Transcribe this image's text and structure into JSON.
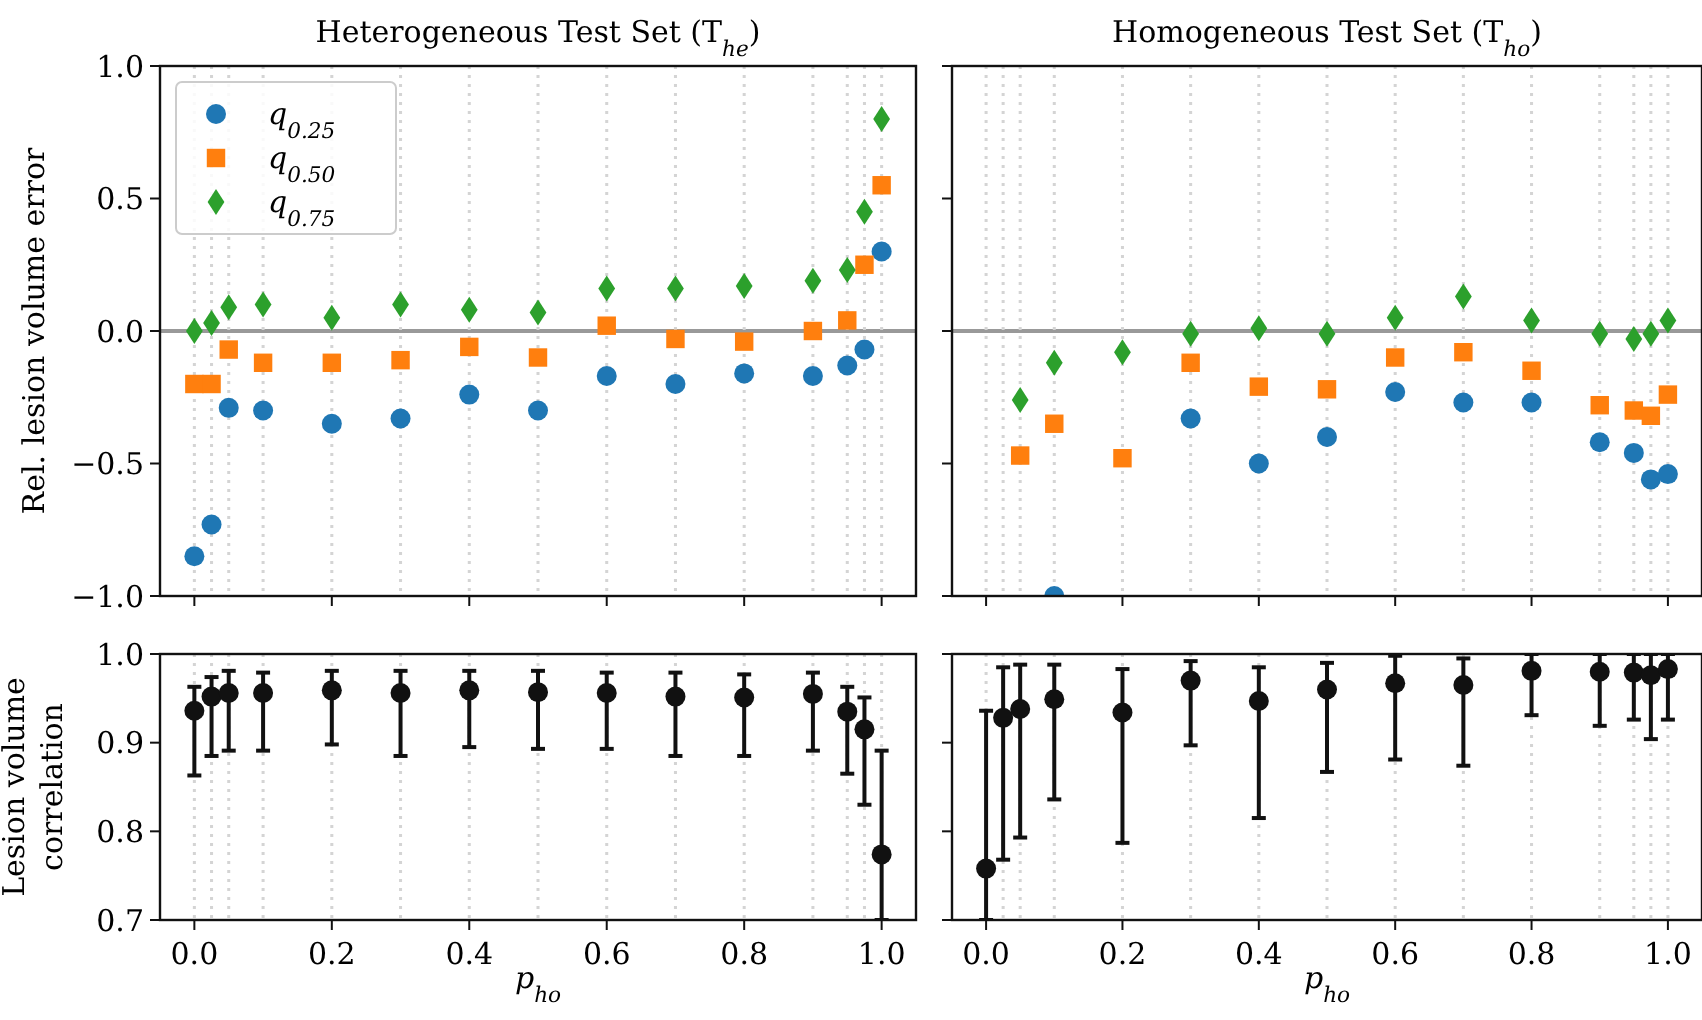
{
  "chart_data": [
    {
      "type": "scatter",
      "title": "Heterogeneous Test Set (T$_{he}$)",
      "ylabel": "Rel. lesion volume error",
      "x": [
        0,
        0.025,
        0.05,
        0.1,
        0.2,
        0.3,
        0.4,
        0.5,
        0.6,
        0.7,
        0.8,
        0.9,
        0.95,
        0.975,
        1.0
      ],
      "series": [
        {
          "name": "q$_{0.25}$",
          "color": "#1f77b4",
          "marker": "circle",
          "values": [
            -0.85,
            -0.73,
            -0.29,
            -0.3,
            -0.35,
            -0.33,
            -0.24,
            -0.3,
            -0.17,
            -0.2,
            -0.16,
            -0.17,
            -0.13,
            -0.07,
            0.3
          ]
        },
        {
          "name": "q$_{0.50}$",
          "color": "#ff7f0e",
          "marker": "square",
          "values": [
            -0.2,
            -0.2,
            -0.07,
            -0.12,
            -0.12,
            -0.11,
            -0.06,
            -0.1,
            0.02,
            -0.03,
            -0.04,
            0.0,
            0.04,
            0.25,
            0.55
          ]
        },
        {
          "name": "q$_{0.75}$",
          "color": "#2ca02c",
          "marker": "diamond",
          "values": [
            0.0,
            0.03,
            0.09,
            0.1,
            0.05,
            0.1,
            0.08,
            0.07,
            0.16,
            0.16,
            0.17,
            0.19,
            0.23,
            0.45,
            0.8
          ]
        }
      ],
      "xlim": [
        -0.05,
        1.05
      ],
      "xticks": [
        {
          "value": 0,
          "label": null
        },
        {
          "value": 0.2,
          "label": null
        },
        {
          "value": 0.4,
          "label": null
        },
        {
          "value": 0.6,
          "label": null
        },
        {
          "value": 0.8,
          "label": null
        },
        {
          "value": 1,
          "label": null
        }
      ],
      "ylim": [
        -1,
        1
      ],
      "yticks": [
        {
          "value": -1,
          "label": "−1.0"
        },
        {
          "value": -0.5,
          "label": "−0.5"
        },
        {
          "value": 0,
          "label": "0.0"
        },
        {
          "value": 0.5,
          "label": "0.5"
        },
        {
          "value": 1,
          "label": "1.0"
        }
      ],
      "tick_labels": "y",
      "legend": "top left",
      "ref_lines": [
        {
          "axis": "y",
          "value": 0,
          "color": "#999999",
          "line_style": "solid"
        },
        {
          "axis": "x",
          "value": 0,
          "color": "#d4d4d4",
          "line_style": "dotted"
        },
        {
          "axis": "x",
          "value": 0.025,
          "color": "#d4d4d4",
          "line_style": "dotted"
        },
        {
          "axis": "x",
          "value": 0.05,
          "color": "#d4d4d4",
          "line_style": "dotted"
        },
        {
          "axis": "x",
          "value": 0.1,
          "color": "#d4d4d4",
          "line_style": "dotted"
        },
        {
          "axis": "x",
          "value": 0.2,
          "color": "#d4d4d4",
          "line_style": "dotted"
        },
        {
          "axis": "x",
          "value": 0.3,
          "color": "#d4d4d4",
          "line_style": "dotted"
        },
        {
          "axis": "x",
          "value": 0.4,
          "color": "#d4d4d4",
          "line_style": "dotted"
        },
        {
          "axis": "x",
          "value": 0.5,
          "color": "#d4d4d4",
          "line_style": "dotted"
        },
        {
          "axis": "x",
          "value": 0.6,
          "color": "#d4d4d4",
          "line_style": "dotted"
        },
        {
          "axis": "x",
          "value": 0.7,
          "color": "#d4d4d4",
          "line_style": "dotted"
        },
        {
          "axis": "x",
          "value": 0.8,
          "color": "#d4d4d4",
          "line_style": "dotted"
        },
        {
          "axis": "x",
          "value": 0.9,
          "color": "#d4d4d4",
          "line_style": "dotted"
        },
        {
          "axis": "x",
          "value": 0.95,
          "color": "#d4d4d4",
          "line_style": "dotted"
        },
        {
          "axis": "x",
          "value": 0.975,
          "color": "#d4d4d4",
          "line_style": "dotted"
        },
        {
          "axis": "x",
          "value": 1.0,
          "color": "#d4d4d4",
          "line_style": "dotted"
        }
      ]
    },
    {
      "type": "scatter",
      "title": "Homogeneous Test Set (T$_{ho}$)",
      "series": [
        {
          "color": "#1f77b4",
          "marker": "circle",
          "x": [
            0.1,
            0.3,
            0.4,
            0.5,
            0.6,
            0.7,
            0.8,
            0.9,
            0.95,
            0.975,
            1.0
          ],
          "values": [
            -1.0,
            -0.33,
            -0.5,
            -0.4,
            -0.23,
            -0.27,
            -0.27,
            -0.42,
            -0.46,
            -0.56,
            -0.54
          ]
        },
        {
          "color": "#ff7f0e",
          "marker": "square",
          "x": [
            0.05,
            0.1,
            0.2,
            0.3,
            0.4,
            0.5,
            0.6,
            0.7,
            0.8,
            0.9,
            0.95,
            0.975,
            1.0
          ],
          "values": [
            -0.47,
            -0.35,
            -0.48,
            -0.12,
            -0.21,
            -0.22,
            -0.1,
            -0.08,
            -0.15,
            -0.28,
            -0.3,
            -0.32,
            -0.24
          ]
        },
        {
          "color": "#2ca02c",
          "marker": "diamond",
          "x": [
            0.05,
            0.1,
            0.2,
            0.3,
            0.4,
            0.5,
            0.6,
            0.7,
            0.8,
            0.9,
            0.95,
            0.975,
            1.0
          ],
          "values": [
            -0.26,
            -0.12,
            -0.08,
            -0.01,
            0.01,
            -0.01,
            0.05,
            0.13,
            0.04,
            -0.01,
            -0.03,
            -0.01,
            0.04
          ]
        }
      ],
      "xlim": [
        -0.05,
        1.05
      ],
      "xticks": [
        {
          "value": 0,
          "label": null
        },
        {
          "value": 0.2,
          "label": null
        },
        {
          "value": 0.4,
          "label": null
        },
        {
          "value": 0.6,
          "label": null
        },
        {
          "value": 0.8,
          "label": null
        },
        {
          "value": 1,
          "label": null
        }
      ],
      "ylim": [
        -1,
        1
      ],
      "yticks": [
        {
          "value": -1,
          "label": null
        },
        {
          "value": -0.5,
          "label": null
        },
        {
          "value": 0,
          "label": null
        },
        {
          "value": 0.5,
          "label": null
        },
        {
          "value": 1,
          "label": null
        }
      ],
      "tick_labels": false,
      "ref_lines": [
        {
          "axis": "y",
          "value": 0,
          "color": "#999999",
          "line_style": "solid"
        },
        {
          "axis": "x",
          "value": 0,
          "color": "#d4d4d4",
          "line_style": "dotted"
        },
        {
          "axis": "x",
          "value": 0.025,
          "color": "#d4d4d4",
          "line_style": "dotted"
        },
        {
          "axis": "x",
          "value": 0.05,
          "color": "#d4d4d4",
          "line_style": "dotted"
        },
        {
          "axis": "x",
          "value": 0.1,
          "color": "#d4d4d4",
          "line_style": "dotted"
        },
        {
          "axis": "x",
          "value": 0.2,
          "color": "#d4d4d4",
          "line_style": "dotted"
        },
        {
          "axis": "x",
          "value": 0.3,
          "color": "#d4d4d4",
          "line_style": "dotted"
        },
        {
          "axis": "x",
          "value": 0.4,
          "color": "#d4d4d4",
          "line_style": "dotted"
        },
        {
          "axis": "x",
          "value": 0.5,
          "color": "#d4d4d4",
          "line_style": "dotted"
        },
        {
          "axis": "x",
          "value": 0.6,
          "color": "#d4d4d4",
          "line_style": "dotted"
        },
        {
          "axis": "x",
          "value": 0.7,
          "color": "#d4d4d4",
          "line_style": "dotted"
        },
        {
          "axis": "x",
          "value": 0.8,
          "color": "#d4d4d4",
          "line_style": "dotted"
        },
        {
          "axis": "x",
          "value": 0.9,
          "color": "#d4d4d4",
          "line_style": "dotted"
        },
        {
          "axis": "x",
          "value": 0.95,
          "color": "#d4d4d4",
          "line_style": "dotted"
        },
        {
          "axis": "x",
          "value": 0.975,
          "color": "#d4d4d4",
          "line_style": "dotted"
        },
        {
          "axis": "x",
          "value": 1.0,
          "color": "#d4d4d4",
          "line_style": "dotted"
        }
      ]
    },
    {
      "type": "scatter",
      "ylabel": "Lesion volume correlation",
      "xlabel": "p$_{ho}$",
      "x": [
        0,
        0.025,
        0.05,
        0.1,
        0.2,
        0.3,
        0.4,
        0.5,
        0.6,
        0.7,
        0.8,
        0.9,
        0.95,
        0.975,
        1.0
      ],
      "series": [
        {
          "color": "#111111",
          "marker": "circle",
          "values": [
            0.936,
            0.952,
            0.956,
            0.956,
            0.959,
            0.956,
            0.959,
            0.957,
            0.956,
            0.952,
            0.951,
            0.955,
            0.935,
            0.915,
            0.774
          ],
          "errors": [
            [
              0.863,
              0.963
            ],
            [
              0.885,
              0.974
            ],
            [
              0.891,
              0.981
            ],
            [
              0.891,
              0.979
            ],
            [
              0.898,
              0.981
            ],
            [
              0.885,
              0.981
            ],
            [
              0.895,
              0.981
            ],
            [
              0.893,
              0.981
            ],
            [
              0.893,
              0.979
            ],
            [
              0.885,
              0.979
            ],
            [
              0.885,
              0.977
            ],
            [
              0.891,
              0.979
            ],
            [
              0.865,
              0.963
            ],
            [
              0.83,
              0.951
            ],
            [
              0.7,
              0.891
            ]
          ]
        }
      ],
      "xlim": [
        -0.05,
        1.05
      ],
      "xticks": [
        {
          "value": 0,
          "label": "0.0"
        },
        {
          "value": 0.2,
          "label": "0.2"
        },
        {
          "value": 0.4,
          "label": "0.4"
        },
        {
          "value": 0.6,
          "label": "0.6"
        },
        {
          "value": 0.8,
          "label": "0.8"
        },
        {
          "value": 1,
          "label": "1.0"
        }
      ],
      "ylim": [
        0.7,
        1
      ],
      "yticks": [
        {
          "value": 0.7,
          "label": "0.7"
        },
        {
          "value": 0.8,
          "label": "0.8"
        },
        {
          "value": 0.9,
          "label": "0.9"
        },
        {
          "value": 1,
          "label": "1.0"
        }
      ],
      "ref_lines": [
        {
          "axis": "x",
          "value": 0,
          "color": "#d4d4d4",
          "line_style": "dotted"
        },
        {
          "axis": "x",
          "value": 0.025,
          "color": "#d4d4d4",
          "line_style": "dotted"
        },
        {
          "axis": "x",
          "value": 0.05,
          "color": "#d4d4d4",
          "line_style": "dotted"
        },
        {
          "axis": "x",
          "value": 0.1,
          "color": "#d4d4d4",
          "line_style": "dotted"
        },
        {
          "axis": "x",
          "value": 0.2,
          "color": "#d4d4d4",
          "line_style": "dotted"
        },
        {
          "axis": "x",
          "value": 0.3,
          "color": "#d4d4d4",
          "line_style": "dotted"
        },
        {
          "axis": "x",
          "value": 0.4,
          "color": "#d4d4d4",
          "line_style": "dotted"
        },
        {
          "axis": "x",
          "value": 0.5,
          "color": "#d4d4d4",
          "line_style": "dotted"
        },
        {
          "axis": "x",
          "value": 0.6,
          "color": "#d4d4d4",
          "line_style": "dotted"
        },
        {
          "axis": "x",
          "value": 0.7,
          "color": "#d4d4d4",
          "line_style": "dotted"
        },
        {
          "axis": "x",
          "value": 0.8,
          "color": "#d4d4d4",
          "line_style": "dotted"
        },
        {
          "axis": "x",
          "value": 0.9,
          "color": "#d4d4d4",
          "line_style": "dotted"
        },
        {
          "axis": "x",
          "value": 0.95,
          "color": "#d4d4d4",
          "line_style": "dotted"
        },
        {
          "axis": "x",
          "value": 0.975,
          "color": "#d4d4d4",
          "line_style": "dotted"
        },
        {
          "axis": "x",
          "value": 1.0,
          "color": "#d4d4d4",
          "line_style": "dotted"
        }
      ]
    },
    {
      "type": "scatter",
      "xlabel": "p$_{ho}$",
      "x": [
        0,
        0.025,
        0.05,
        0.1,
        0.2,
        0.3,
        0.4,
        0.5,
        0.6,
        0.7,
        0.8,
        0.9,
        0.95,
        0.975,
        1.0
      ],
      "series": [
        {
          "color": "#111111",
          "marker": "circle",
          "values": [
            0.758,
            0.928,
            0.938,
            0.949,
            0.934,
            0.97,
            0.947,
            0.96,
            0.967,
            0.965,
            0.981,
            0.98,
            0.979,
            0.976,
            0.983
          ],
          "errors": [
            [
              0.7,
              0.936
            ],
            [
              0.768,
              0.985
            ],
            [
              0.793,
              0.988
            ],
            [
              0.836,
              0.988
            ],
            [
              0.787,
              0.983
            ],
            [
              0.897,
              0.992
            ],
            [
              0.815,
              0.985
            ],
            [
              0.867,
              0.99
            ],
            [
              0.881,
              0.998
            ],
            [
              0.874,
              0.995
            ],
            [
              0.931,
              1.0
            ],
            [
              0.919,
              1.0
            ],
            [
              0.926,
              1.0
            ],
            [
              0.904,
              1.0
            ],
            [
              0.926,
              1.0
            ]
          ]
        }
      ],
      "xlim": [
        -0.05,
        1.05
      ],
      "xticks": [
        {
          "value": 0,
          "label": "0.0"
        },
        {
          "value": 0.2,
          "label": "0.2"
        },
        {
          "value": 0.4,
          "label": "0.4"
        },
        {
          "value": 0.6,
          "label": "0.6"
        },
        {
          "value": 0.8,
          "label": "0.8"
        },
        {
          "value": 1,
          "label": "1.0"
        }
      ],
      "ylim": [
        0.7,
        1
      ],
      "yticks": [
        {
          "value": 0.7,
          "label": null
        },
        {
          "value": 0.8,
          "label": null
        },
        {
          "value": 0.9,
          "label": null
        },
        {
          "value": 1,
          "label": null
        }
      ],
      "tick_labels": "x",
      "ref_lines": [
        {
          "axis": "x",
          "value": 0,
          "color": "#d4d4d4",
          "line_style": "dotted"
        },
        {
          "axis": "x",
          "value": 0.025,
          "color": "#d4d4d4",
          "line_style": "dotted"
        },
        {
          "axis": "x",
          "value": 0.05,
          "color": "#d4d4d4",
          "line_style": "dotted"
        },
        {
          "axis": "x",
          "value": 0.1,
          "color": "#d4d4d4",
          "line_style": "dotted"
        },
        {
          "axis": "x",
          "value": 0.2,
          "color": "#d4d4d4",
          "line_style": "dotted"
        },
        {
          "axis": "x",
          "value": 0.3,
          "color": "#d4d4d4",
          "line_style": "dotted"
        },
        {
          "axis": "x",
          "value": 0.4,
          "color": "#d4d4d4",
          "line_style": "dotted"
        },
        {
          "axis": "x",
          "value": 0.5,
          "color": "#d4d4d4",
          "line_style": "dotted"
        },
        {
          "axis": "x",
          "value": 0.6,
          "color": "#d4d4d4",
          "line_style": "dotted"
        },
        {
          "axis": "x",
          "value": 0.7,
          "color": "#d4d4d4",
          "line_style": "dotted"
        },
        {
          "axis": "x",
          "value": 0.8,
          "color": "#d4d4d4",
          "line_style": "dotted"
        },
        {
          "axis": "x",
          "value": 0.9,
          "color": "#d4d4d4",
          "line_style": "dotted"
        },
        {
          "axis": "x",
          "value": 0.95,
          "color": "#d4d4d4",
          "line_style": "dotted"
        },
        {
          "axis": "x",
          "value": 0.975,
          "color": "#d4d4d4",
          "line_style": "dotted"
        },
        {
          "axis": "x",
          "value": 1.0,
          "color": "#d4d4d4",
          "line_style": "dotted"
        }
      ]
    }
  ]
}
